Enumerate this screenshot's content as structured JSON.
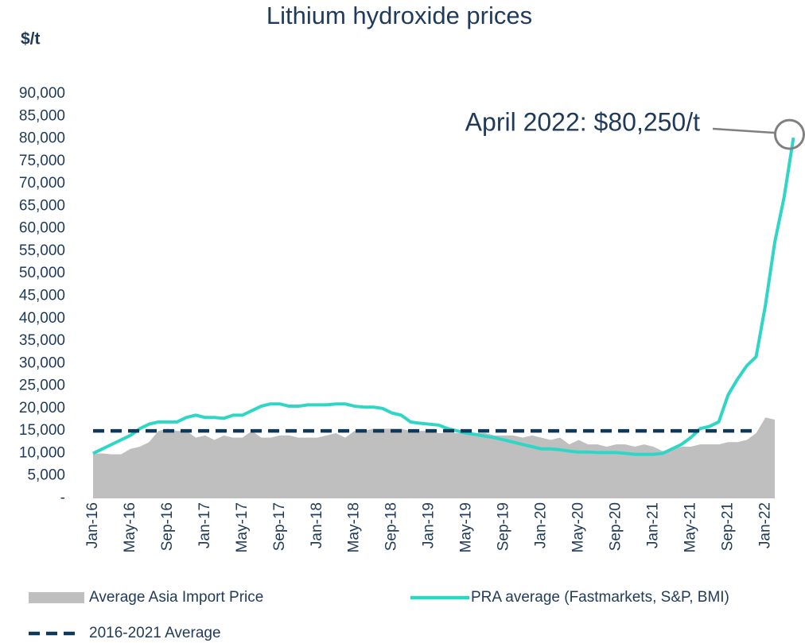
{
  "chart_data": {
    "type": "area-line",
    "title": "Lithium hydroxide prices",
    "y_label": "$/t",
    "annotation": "April 2022: $80,250/t",
    "categories": [
      "Jan-16",
      null,
      null,
      null,
      "May-16",
      null,
      null,
      null,
      "Sep-16",
      null,
      null,
      null,
      "Jan-17",
      null,
      null,
      null,
      "May-17",
      null,
      null,
      null,
      "Sep-17",
      null,
      null,
      null,
      "Jan-18",
      null,
      null,
      null,
      "May-18",
      null,
      null,
      null,
      "Sep-18",
      null,
      null,
      null,
      "Jan-19",
      null,
      null,
      null,
      "May-19",
      null,
      null,
      null,
      "Sep-19",
      null,
      null,
      null,
      "Jan-20",
      null,
      null,
      null,
      "May-20",
      null,
      null,
      null,
      "Sep-20",
      null,
      null,
      null,
      "Jan-21",
      null,
      null,
      null,
      "May-21",
      null,
      null,
      null,
      "Sep-21",
      null,
      null,
      null,
      "Jan-22",
      null,
      null,
      null
    ],
    "series": [
      {
        "name": "Average Asia Import Price",
        "kind": "area",
        "color": "#bfbfbf",
        "values": [
          10000,
          10000,
          9800,
          9800,
          11000,
          11500,
          12500,
          15000,
          15500,
          15000,
          15000,
          13500,
          14000,
          13000,
          14000,
          13500,
          13500,
          15000,
          13500,
          13500,
          14000,
          14000,
          13500,
          13500,
          13500,
          14000,
          14500,
          13500,
          15000,
          15000,
          15500,
          15500,
          15500,
          15500,
          15000,
          15000,
          15000,
          14500,
          14500,
          14500,
          14500,
          14500,
          14500,
          14000,
          14000,
          14000,
          13500,
          14000,
          13500,
          13000,
          13500,
          12000,
          13000,
          12000,
          12000,
          11500,
          12000,
          12000,
          11500,
          12000,
          11500,
          10500,
          11000,
          11500,
          11500,
          12000,
          12000,
          12000,
          12500,
          12500,
          13000,
          14500,
          18000,
          17500,
          null,
          null
        ]
      },
      {
        "name": "PRA average (Fastmarkets, S&P, BMI)",
        "kind": "line",
        "color": "#2fd6c6",
        "values": [
          10000,
          11000,
          12000,
          13000,
          14000,
          15500,
          16500,
          17000,
          17000,
          17000,
          18000,
          18500,
          18000,
          18000,
          17800,
          18500,
          18500,
          19500,
          20500,
          21000,
          21000,
          20500,
          20500,
          20800,
          20800,
          20800,
          21000,
          21000,
          20500,
          20300,
          20300,
          20000,
          19000,
          18500,
          17000,
          16700,
          16500,
          16300,
          15500,
          15000,
          14500,
          14200,
          13800,
          13500,
          13000,
          12500,
          12000,
          11500,
          11000,
          11000,
          10800,
          10500,
          10300,
          10300,
          10200,
          10200,
          10200,
          10000,
          9800,
          9800,
          9800,
          10000,
          11000,
          12000,
          13500,
          15500,
          16000,
          17000,
          23000,
          26500,
          29500,
          31500,
          43000,
          57000,
          67000,
          80250
        ]
      },
      {
        "name": "2016-2021 Average",
        "kind": "dashed",
        "color": "#0d3a5c",
        "values": [
          15000,
          15000,
          15000,
          15000,
          15000,
          15000,
          15000,
          15000,
          15000,
          15000,
          15000,
          15000,
          15000,
          15000,
          15000,
          15000,
          15000,
          15000,
          15000,
          15000,
          15000,
          15000,
          15000,
          15000,
          15000,
          15000,
          15000,
          15000,
          15000,
          15000,
          15000,
          15000,
          15000,
          15000,
          15000,
          15000,
          15000,
          15000,
          15000,
          15000,
          15000,
          15000,
          15000,
          15000,
          15000,
          15000,
          15000,
          15000,
          15000,
          15000,
          15000,
          15000,
          15000,
          15000,
          15000,
          15000,
          15000,
          15000,
          15000,
          15000,
          15000,
          15000,
          15000,
          15000,
          15000,
          15000,
          15000,
          15000,
          15000,
          15000,
          15000,
          15000,
          null,
          null,
          null,
          null
        ]
      }
    ],
    "ylim": [
      0,
      90000
    ],
    "yticks": [
      {
        "value": 0,
        "label": "-"
      },
      {
        "value": 5000,
        "label": "5,000"
      },
      {
        "value": 10000,
        "label": "10,000"
      },
      {
        "value": 15000,
        "label": "15,000"
      },
      {
        "value": 20000,
        "label": "20,000"
      },
      {
        "value": 25000,
        "label": "25,000"
      },
      {
        "value": 30000,
        "label": "30,000"
      },
      {
        "value": 35000,
        "label": "35,000"
      },
      {
        "value": 40000,
        "label": "40,000"
      },
      {
        "value": 45000,
        "label": "45,000"
      },
      {
        "value": 50000,
        "label": "50,000"
      },
      {
        "value": 55000,
        "label": "55,000"
      },
      {
        "value": 60000,
        "label": "60,000"
      },
      {
        "value": 65000,
        "label": "65,000"
      },
      {
        "value": 70000,
        "label": "70,000"
      },
      {
        "value": 75000,
        "label": "75,000"
      },
      {
        "value": 80000,
        "label": "80,000"
      },
      {
        "value": 85000,
        "label": "85,000"
      },
      {
        "value": 90000,
        "label": "90,000"
      }
    ],
    "grid": false
  }
}
